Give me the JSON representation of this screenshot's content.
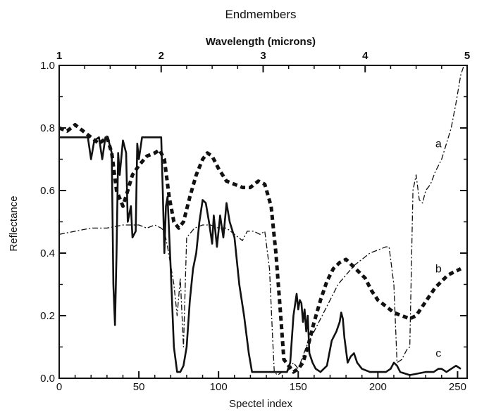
{
  "chart_data": {
    "type": "line",
    "title": "Endmembers",
    "top_axis_label": "Wavelength (microns)",
    "top_ticks": [
      {
        "label": "1",
        "x": 0
      },
      {
        "label": "2",
        "x": 64
      },
      {
        "label": "3",
        "x": 128
      },
      {
        "label": "4",
        "x": 192
      },
      {
        "label": "5",
        "x": 256
      }
    ],
    "xlabel": "Spectel index",
    "ylabel": "Reflectance",
    "xlim": [
      0,
      256
    ],
    "ylim": [
      0.0,
      1.0
    ],
    "x_ticks": [
      "0",
      "50",
      "100",
      "150",
      "200",
      "250"
    ],
    "y_ticks": [
      "0.0",
      "0.2",
      "0.4",
      "0.6",
      "0.8",
      "1.0"
    ],
    "grid": false,
    "series": [
      {
        "name": "a",
        "style": "dash-dot",
        "label_at": [
          238,
          0.75
        ],
        "points": [
          [
            0,
            0.46
          ],
          [
            10,
            0.47
          ],
          [
            20,
            0.48
          ],
          [
            30,
            0.48
          ],
          [
            40,
            0.49
          ],
          [
            50,
            0.49
          ],
          [
            55,
            0.48
          ],
          [
            60,
            0.49
          ],
          [
            64,
            0.48
          ],
          [
            66,
            0.47
          ],
          [
            68,
            0.42
          ],
          [
            70,
            0.36
          ],
          [
            72,
            0.3
          ],
          [
            74,
            0.2
          ],
          [
            76,
            0.32
          ],
          [
            78,
            0.1
          ],
          [
            80,
            0.45
          ],
          [
            85,
            0.48
          ],
          [
            90,
            0.49
          ],
          [
            95,
            0.49
          ],
          [
            100,
            0.48
          ],
          [
            105,
            0.48
          ],
          [
            110,
            0.46
          ],
          [
            115,
            0.44
          ],
          [
            118,
            0.47
          ],
          [
            122,
            0.47
          ],
          [
            126,
            0.46
          ],
          [
            129,
            0.47
          ],
          [
            132,
            0.35
          ],
          [
            134,
            0.12
          ],
          [
            135,
            0.02
          ],
          [
            137,
            0.01
          ],
          [
            140,
            0.02
          ],
          [
            143,
            0.02
          ],
          [
            147,
            0.05
          ],
          [
            150,
            0.03
          ],
          [
            155,
            0.1
          ],
          [
            160,
            0.15
          ],
          [
            165,
            0.2
          ],
          [
            170,
            0.25
          ],
          [
            175,
            0.3
          ],
          [
            180,
            0.33
          ],
          [
            185,
            0.36
          ],
          [
            190,
            0.38
          ],
          [
            195,
            0.4
          ],
          [
            200,
            0.41
          ],
          [
            205,
            0.42
          ],
          [
            207,
            0.42
          ],
          [
            210,
            0.3
          ],
          [
            212,
            0.05
          ],
          [
            215,
            0.06
          ],
          [
            218,
            0.09
          ],
          [
            220,
            0.1
          ],
          [
            222,
            0.6
          ],
          [
            224,
            0.65
          ],
          [
            226,
            0.57
          ],
          [
            228,
            0.56
          ],
          [
            230,
            0.6
          ],
          [
            233,
            0.62
          ],
          [
            236,
            0.66
          ],
          [
            238,
            0.68
          ],
          [
            240,
            0.7
          ],
          [
            243,
            0.75
          ],
          [
            246,
            0.8
          ],
          [
            249,
            0.88
          ],
          [
            252,
            0.97
          ],
          [
            254,
            1.0
          ]
        ]
      },
      {
        "name": "b",
        "style": "dashed",
        "label_at": [
          238,
          0.35
        ],
        "points": [
          [
            0,
            0.8
          ],
          [
            5,
            0.79
          ],
          [
            10,
            0.81
          ],
          [
            15,
            0.79
          ],
          [
            20,
            0.77
          ],
          [
            25,
            0.75
          ],
          [
            30,
            0.77
          ],
          [
            33,
            0.72
          ],
          [
            36,
            0.6
          ],
          [
            40,
            0.55
          ],
          [
            43,
            0.6
          ],
          [
            46,
            0.65
          ],
          [
            50,
            0.68
          ],
          [
            55,
            0.71
          ],
          [
            60,
            0.72
          ],
          [
            63,
            0.73
          ],
          [
            66,
            0.7
          ],
          [
            69,
            0.58
          ],
          [
            72,
            0.5
          ],
          [
            75,
            0.48
          ],
          [
            78,
            0.5
          ],
          [
            82,
            0.58
          ],
          [
            86,
            0.65
          ],
          [
            90,
            0.7
          ],
          [
            93,
            0.72
          ],
          [
            96,
            0.71
          ],
          [
            100,
            0.67
          ],
          [
            105,
            0.63
          ],
          [
            110,
            0.62
          ],
          [
            115,
            0.61
          ],
          [
            120,
            0.61
          ],
          [
            125,
            0.63
          ],
          [
            129,
            0.62
          ],
          [
            133,
            0.55
          ],
          [
            136,
            0.4
          ],
          [
            139,
            0.2
          ],
          [
            141,
            0.06
          ],
          [
            144,
            0.04
          ],
          [
            147,
            0.02
          ],
          [
            150,
            0.03
          ],
          [
            153,
            0.05
          ],
          [
            156,
            0.1
          ],
          [
            160,
            0.18
          ],
          [
            164,
            0.25
          ],
          [
            168,
            0.31
          ],
          [
            172,
            0.35
          ],
          [
            176,
            0.37
          ],
          [
            180,
            0.38
          ],
          [
            184,
            0.36
          ],
          [
            188,
            0.34
          ],
          [
            192,
            0.32
          ],
          [
            196,
            0.28
          ],
          [
            200,
            0.25
          ],
          [
            205,
            0.23
          ],
          [
            210,
            0.21
          ],
          [
            215,
            0.2
          ],
          [
            220,
            0.19
          ],
          [
            224,
            0.2
          ],
          [
            228,
            0.23
          ],
          [
            232,
            0.26
          ],
          [
            236,
            0.29
          ],
          [
            240,
            0.31
          ],
          [
            244,
            0.33
          ],
          [
            248,
            0.34
          ],
          [
            252,
            0.35
          ]
        ]
      },
      {
        "name": "c",
        "style": "solid",
        "label_at": [
          238,
          0.08
        ],
        "points": [
          [
            0,
            0.77
          ],
          [
            18,
            0.77
          ],
          [
            20,
            0.7
          ],
          [
            22,
            0.76
          ],
          [
            25,
            0.77
          ],
          [
            27,
            0.7
          ],
          [
            29,
            0.77
          ],
          [
            31,
            0.76
          ],
          [
            33,
            0.72
          ],
          [
            34,
            0.3
          ],
          [
            35,
            0.17
          ],
          [
            36,
            0.4
          ],
          [
            37,
            0.72
          ],
          [
            38,
            0.65
          ],
          [
            40,
            0.76
          ],
          [
            42,
            0.72
          ],
          [
            43,
            0.5
          ],
          [
            45,
            0.55
          ],
          [
            46,
            0.45
          ],
          [
            48,
            0.47
          ],
          [
            49,
            0.75
          ],
          [
            50,
            0.7
          ],
          [
            52,
            0.77
          ],
          [
            62,
            0.77
          ],
          [
            64,
            0.77
          ],
          [
            65,
            0.6
          ],
          [
            66,
            0.4
          ],
          [
            67,
            0.55
          ],
          [
            68,
            0.58
          ],
          [
            70,
            0.35
          ],
          [
            72,
            0.1
          ],
          [
            74,
            0.02
          ],
          [
            76,
            0.02
          ],
          [
            78,
            0.04
          ],
          [
            80,
            0.1
          ],
          [
            82,
            0.25
          ],
          [
            84,
            0.35
          ],
          [
            86,
            0.4
          ],
          [
            88,
            0.5
          ],
          [
            90,
            0.57
          ],
          [
            92,
            0.56
          ],
          [
            94,
            0.5
          ],
          [
            96,
            0.43
          ],
          [
            97,
            0.52
          ],
          [
            99,
            0.42
          ],
          [
            101,
            0.52
          ],
          [
            103,
            0.45
          ],
          [
            105,
            0.56
          ],
          [
            107,
            0.5
          ],
          [
            110,
            0.45
          ],
          [
            113,
            0.3
          ],
          [
            116,
            0.2
          ],
          [
            119,
            0.08
          ],
          [
            121,
            0.02
          ],
          [
            125,
            0.02
          ],
          [
            140,
            0.02
          ],
          [
            143,
            0.02
          ],
          [
            145,
            0.05
          ],
          [
            147,
            0.2
          ],
          [
            149,
            0.27
          ],
          [
            150,
            0.22
          ],
          [
            151,
            0.25
          ],
          [
            152,
            0.24
          ],
          [
            153,
            0.18
          ],
          [
            154,
            0.22
          ],
          [
            155,
            0.15
          ],
          [
            156,
            0.2
          ],
          [
            157,
            0.08
          ],
          [
            159,
            0.05
          ],
          [
            161,
            0.03
          ],
          [
            164,
            0.02
          ],
          [
            168,
            0.04
          ],
          [
            171,
            0.12
          ],
          [
            174,
            0.15
          ],
          [
            176,
            0.18
          ],
          [
            177,
            0.21
          ],
          [
            178,
            0.19
          ],
          [
            179,
            0.13
          ],
          [
            181,
            0.05
          ],
          [
            183,
            0.07
          ],
          [
            185,
            0.08
          ],
          [
            187,
            0.05
          ],
          [
            190,
            0.03
          ],
          [
            195,
            0.02
          ],
          [
            205,
            0.02
          ],
          [
            208,
            0.03
          ],
          [
            210,
            0.05
          ],
          [
            212,
            0.04
          ],
          [
            214,
            0.02
          ],
          [
            220,
            0.01
          ],
          [
            230,
            0.02
          ],
          [
            235,
            0.02
          ],
          [
            238,
            0.03
          ],
          [
            240,
            0.03
          ],
          [
            243,
            0.02
          ],
          [
            246,
            0.03
          ],
          [
            249,
            0.04
          ],
          [
            252,
            0.03
          ]
        ]
      }
    ]
  }
}
